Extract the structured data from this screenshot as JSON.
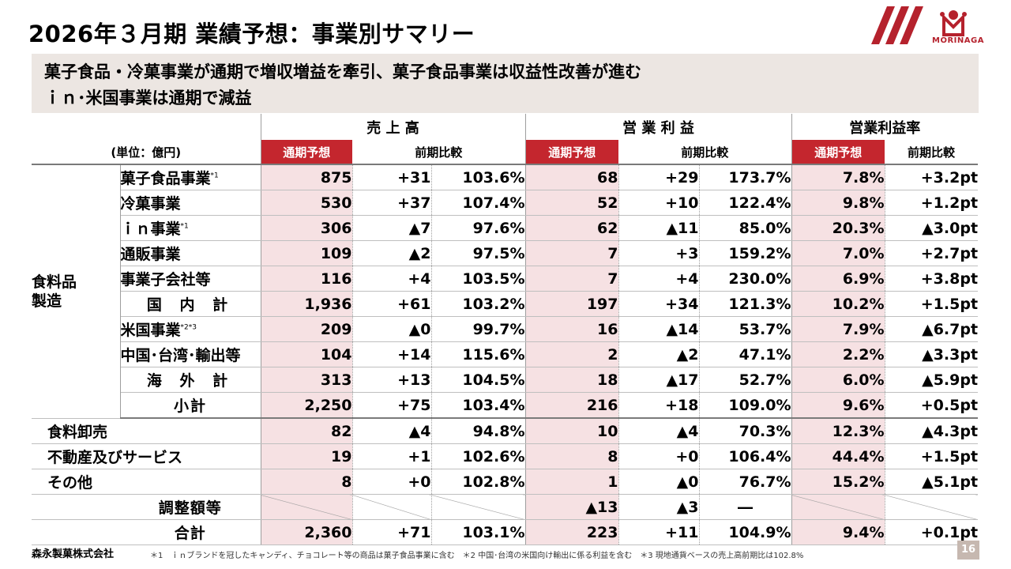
{
  "title": "2026年３月期 業績予想：事業別サマリー",
  "logo_text": "MORINAGA",
  "banner": {
    "line1": "菓子食品・冷菓事業が通期で増収増益を牽引、菓子食品事業は収益性改善が進む",
    "line2": "ｉｎ･米国事業は通期で減益"
  },
  "table": {
    "unit": "(単位：億円)",
    "groups": [
      "売 上 高",
      "営 業 利 益",
      "営業利益率"
    ],
    "forecast_label": "通期予想",
    "yoy_label": "前期比較",
    "category_food": "食料品\n製造",
    "rows": [
      {
        "name": "菓子食品事業",
        "note": "*1",
        "cells": [
          "875",
          "+31",
          "103.6%",
          "68",
          "+29",
          "173.7%",
          "7.8%",
          "+3.2pt"
        ]
      },
      {
        "name": "冷菓事業",
        "note": "",
        "cells": [
          "530",
          "+37",
          "107.4%",
          "52",
          "+10",
          "122.4%",
          "9.8%",
          "+1.2pt"
        ]
      },
      {
        "name": "ｉｎ事業",
        "note": "*1",
        "cells": [
          "306",
          "▲7",
          "97.6%",
          "62",
          "▲11",
          "85.0%",
          "20.3%",
          "▲3.0pt"
        ]
      },
      {
        "name": "通販事業",
        "note": "",
        "cells": [
          "109",
          "▲2",
          "97.5%",
          "7",
          "+3",
          "159.2%",
          "7.0%",
          "+2.7pt"
        ]
      },
      {
        "name": "事業子会社等",
        "note": "",
        "cells": [
          "116",
          "+4",
          "103.5%",
          "7",
          "+4",
          "230.0%",
          "6.9%",
          "+3.8pt"
        ]
      },
      {
        "name": "国 内 計",
        "note": "",
        "cells": [
          "1,936",
          "+61",
          "103.2%",
          "197",
          "+34",
          "121.3%",
          "10.2%",
          "+1.5pt"
        ]
      },
      {
        "name": "米国事業",
        "note": "*2*3",
        "cells": [
          "209",
          "▲0",
          "99.7%",
          "16",
          "▲14",
          "53.7%",
          "7.9%",
          "▲6.7pt"
        ]
      },
      {
        "name": "中国･台湾･輸出等",
        "note": "",
        "cells": [
          "104",
          "+14",
          "115.6%",
          "2",
          "▲2",
          "47.1%",
          "2.2%",
          "▲3.3pt"
        ]
      },
      {
        "name": "海 外 計",
        "note": "",
        "cells": [
          "313",
          "+13",
          "104.5%",
          "18",
          "▲17",
          "52.7%",
          "6.0%",
          "▲5.9pt"
        ]
      },
      {
        "name": "小計",
        "note": "",
        "cells": [
          "2,250",
          "+75",
          "103.4%",
          "216",
          "+18",
          "109.0%",
          "9.6%",
          "+0.5pt"
        ]
      },
      {
        "name": "食料卸売",
        "note": "",
        "cells": [
          "82",
          "▲4",
          "94.8%",
          "10",
          "▲4",
          "70.3%",
          "12.3%",
          "▲4.3pt"
        ]
      },
      {
        "name": "不動産及びサービス",
        "note": "",
        "cells": [
          "19",
          "+1",
          "102.6%",
          "8",
          "+0",
          "106.4%",
          "44.4%",
          "+1.5pt"
        ]
      },
      {
        "name": "その他",
        "note": "",
        "cells": [
          "8",
          "+0",
          "102.8%",
          "1",
          "▲0",
          "76.7%",
          "15.2%",
          "▲5.1pt"
        ]
      },
      {
        "name": "調整額等",
        "note": "",
        "cells": [
          "",
          "",
          "",
          "▲13",
          "▲3",
          "―",
          "",
          ""
        ]
      },
      {
        "name": "合計",
        "note": "",
        "cells": [
          "2,360",
          "+71",
          "103.1%",
          "223",
          "+11",
          "104.9%",
          "9.4%",
          "+0.1pt"
        ]
      }
    ]
  },
  "footer": {
    "company": "森永製菓株式会社",
    "notes": "＊1　ｉｎブランドを冠したキャンディ、チョコレート等の商品は菓子食品事業に含む　＊2  中国･台湾の米国向け輸出に係る利益を含む　＊3  現地通貨ベースの売上高前期比は102.8%",
    "page": "16"
  },
  "colors": {
    "accent": "#c4262e",
    "highlight": "#f6e1e3",
    "banner": "#ece6e2"
  }
}
